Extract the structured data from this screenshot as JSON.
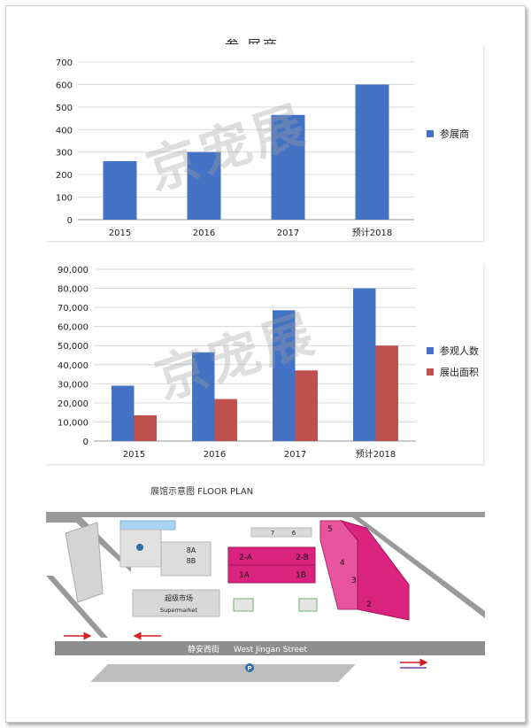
{
  "watermark_text": "京宠展",
  "chart_data": [
    {
      "type": "bar",
      "categories": [
        "2015",
        "2016",
        "2017",
        "预计2018"
      ],
      "series": [
        {
          "name": "参展商",
          "values": [
            260,
            300,
            465,
            600
          ],
          "color": "#4472C4"
        }
      ],
      "y_ticks": [
        "0",
        "100",
        "200",
        "300",
        "400",
        "500",
        "600",
        "700"
      ],
      "ylim": [
        0,
        700
      ],
      "grid": true,
      "legend": "right"
    },
    {
      "type": "bar",
      "categories": [
        "2015",
        "2016",
        "2017",
        "预计2018"
      ],
      "series": [
        {
          "name": "参观人数",
          "values": [
            29000,
            46500,
            68500,
            80000
          ],
          "color": "#4472C4"
        },
        {
          "name": "展出面积",
          "values": [
            13500,
            22000,
            37000,
            50000
          ],
          "color": "#C0504D"
        }
      ],
      "y_ticks": [
        "0",
        "10,000",
        "20,000",
        "30,000",
        "40,000",
        "50,000",
        "60,000",
        "70,000",
        "80,000",
        "90,000"
      ],
      "ylim": [
        0,
        90000
      ],
      "grid": true,
      "legend": "right"
    }
  ],
  "floor_plan": {
    "title": "展馆示意图     FLOOR PLAN",
    "hall_1a": "1A",
    "hall_1b": "1B",
    "hall_2a": "2-A",
    "hall_2b": "2-B",
    "hall_2": "2",
    "hall_3": "3",
    "hall_4": "4",
    "hall_5": "5",
    "hall_6": "6",
    "hall_7": "7",
    "hall_8a": "8A",
    "hall_8b": "8B",
    "supermarket_cn": "超级市场",
    "supermarket_en": "Supermarket",
    "street_cn": "静安西街",
    "street_en": "West Jingan Street",
    "parking_symbol": "P",
    "colors": {
      "hall": "#d9237f",
      "hall_light": "#e8559e",
      "road": "#8e8e8e",
      "building": "#cfcfcf",
      "arrow": "#d21f1f",
      "arrow_alt": "#7b3fa0"
    }
  }
}
